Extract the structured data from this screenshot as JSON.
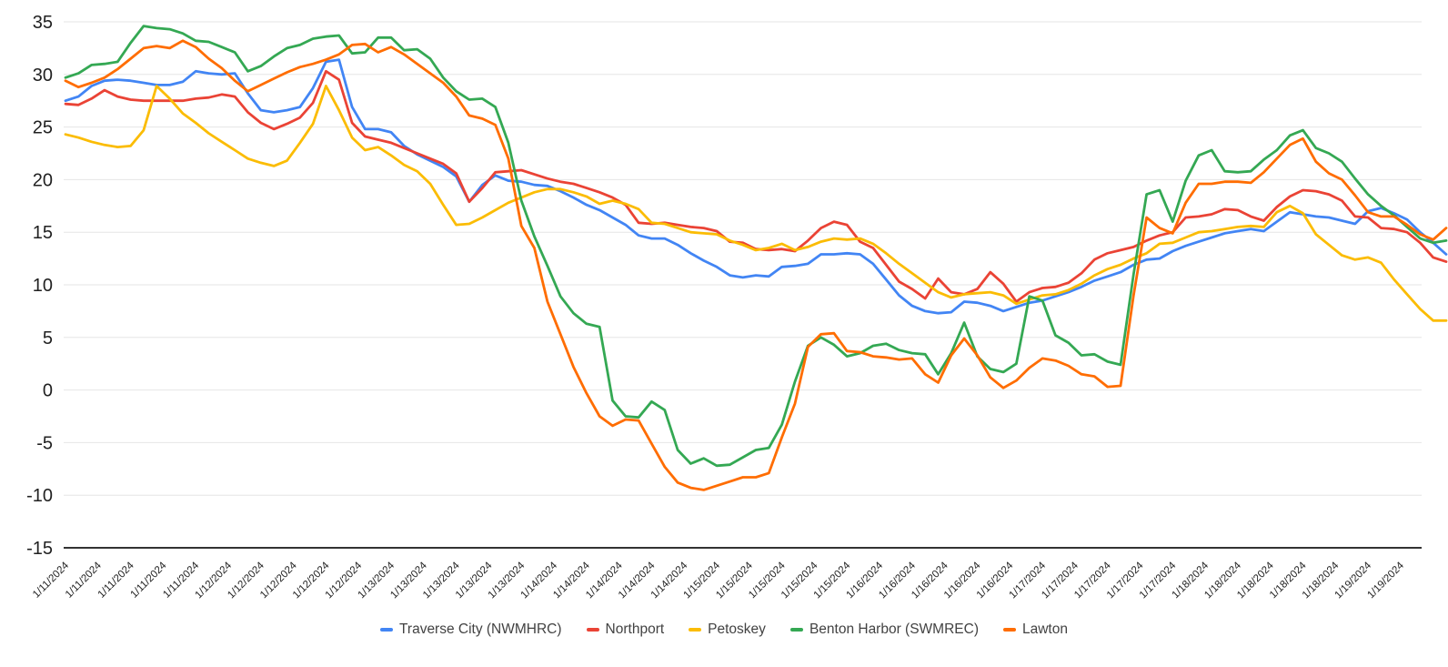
{
  "chart_data": {
    "type": "line",
    "title": "",
    "xlabel": "",
    "ylabel": "",
    "grid": true,
    "legend_position": "bottom",
    "y_axis": {
      "min": -15,
      "max": 35,
      "tick_step": 5,
      "tick_labels": [
        "35",
        "30",
        "25",
        "20",
        "15",
        "10",
        "5",
        "0",
        "-5",
        "-10",
        "-15"
      ]
    },
    "x_axis": {
      "tick_interval_hours": 5,
      "tick_labels": [
        "1/11/2024",
        "1/11/2024",
        "1/11/2024",
        "1/11/2024",
        "1/11/2024",
        "1/12/2024",
        "1/12/2024",
        "1/12/2024",
        "1/12/2024",
        "1/12/2024",
        "1/13/2024",
        "1/13/2024",
        "1/13/2024",
        "1/13/2024",
        "1/13/2024",
        "1/14/2024",
        "1/14/2024",
        "1/14/2024",
        "1/14/2024",
        "1/14/2024",
        "1/15/2024",
        "1/15/2024",
        "1/15/2024",
        "1/15/2024",
        "1/15/2024",
        "1/16/2024",
        "1/16/2024",
        "1/16/2024",
        "1/16/2024",
        "1/16/2024",
        "1/17/2024",
        "1/17/2024",
        "1/17/2024",
        "1/17/2024",
        "1/17/2024",
        "1/18/2024",
        "1/18/2024",
        "1/18/2024",
        "1/18/2024",
        "1/18/2024",
        "1/19/2024",
        "1/19/2024"
      ]
    },
    "x_step_hours": 2,
    "x_max_hours": 212,
    "series": [
      {
        "name": "Traverse City (NWMHRC)",
        "color": "#4285F4",
        "values": [
          27.5,
          27.9,
          28.9,
          29.4,
          29.5,
          29.4,
          29.2,
          29.0,
          29.0,
          29.3,
          30.3,
          30.1,
          30.0,
          30.1,
          28.2,
          26.6,
          26.4,
          26.6,
          26.9,
          28.7,
          31.2,
          31.4,
          26.9,
          24.8,
          24.8,
          24.5,
          23.2,
          22.4,
          21.8,
          21.2,
          20.3,
          17.9,
          19.5,
          20.4,
          19.9,
          19.8,
          19.5,
          19.4,
          18.9,
          18.3,
          17.6,
          17.1,
          16.4,
          15.7,
          14.7,
          14.4,
          14.4,
          13.8,
          13.0,
          12.3,
          11.7,
          10.9,
          10.7,
          10.9,
          10.8,
          11.7,
          11.8,
          12.0,
          12.9,
          12.9,
          13.0,
          12.9,
          12.0,
          10.5,
          9.0,
          8.0,
          7.5,
          7.3,
          7.4,
          8.4,
          8.3,
          8.0,
          7.5,
          7.9,
          8.3,
          8.5,
          8.9,
          9.3,
          9.8,
          10.4,
          10.8,
          11.2,
          11.9,
          12.4,
          12.5,
          13.2,
          13.7,
          14.1,
          14.5,
          14.9,
          15.1,
          15.3,
          15.1,
          16.0,
          16.9,
          16.7,
          16.5,
          16.4,
          16.1,
          15.8,
          17.0,
          17.3,
          16.8,
          16.2,
          15.0,
          14.0,
          12.9
        ]
      },
      {
        "name": "Northport",
        "color": "#EA4335",
        "values": [
          27.2,
          27.1,
          27.7,
          28.5,
          27.9,
          27.6,
          27.5,
          27.5,
          27.5,
          27.5,
          27.7,
          27.8,
          28.1,
          27.9,
          26.4,
          25.4,
          24.8,
          25.3,
          25.9,
          27.3,
          30.3,
          29.5,
          25.4,
          24.1,
          23.8,
          23.5,
          23.0,
          22.5,
          22.0,
          21.5,
          20.6,
          17.9,
          19.2,
          20.7,
          20.8,
          20.9,
          20.5,
          20.1,
          19.8,
          19.6,
          19.2,
          18.8,
          18.3,
          17.6,
          15.9,
          15.8,
          15.9,
          15.7,
          15.5,
          15.4,
          15.1,
          14.1,
          14.0,
          13.4,
          13.3,
          13.4,
          13.2,
          14.2,
          15.4,
          16.0,
          15.7,
          14.1,
          13.5,
          11.9,
          10.3,
          9.6,
          8.7,
          10.6,
          9.3,
          9.1,
          9.6,
          11.2,
          10.1,
          8.4,
          9.3,
          9.7,
          9.8,
          10.2,
          11.1,
          12.4,
          13.0,
          13.3,
          13.6,
          14.2,
          14.7,
          15.0,
          16.4,
          16.5,
          16.7,
          17.2,
          17.1,
          16.5,
          16.1,
          17.4,
          18.4,
          19.0,
          18.9,
          18.6,
          18.0,
          16.5,
          16.4,
          15.4,
          15.3,
          15.0,
          14.0,
          12.6,
          12.2
        ]
      },
      {
        "name": "Petoskey",
        "color": "#FBBC04",
        "values": [
          24.3,
          24.0,
          23.6,
          23.3,
          23.1,
          23.2,
          24.7,
          28.9,
          27.7,
          26.3,
          25.4,
          24.4,
          23.6,
          22.8,
          22.0,
          21.6,
          21.3,
          21.8,
          23.5,
          25.3,
          28.9,
          26.6,
          24.0,
          22.8,
          23.1,
          22.3,
          21.4,
          20.8,
          19.6,
          17.6,
          15.7,
          15.8,
          16.4,
          17.1,
          17.8,
          18.3,
          18.8,
          19.1,
          19.1,
          18.8,
          18.4,
          17.7,
          18.0,
          17.7,
          17.2,
          15.9,
          15.8,
          15.4,
          15.0,
          14.9,
          14.8,
          14.2,
          13.8,
          13.3,
          13.5,
          13.9,
          13.3,
          13.6,
          14.1,
          14.4,
          14.3,
          14.4,
          13.9,
          13.0,
          12.0,
          11.1,
          10.2,
          9.3,
          8.8,
          9.1,
          9.2,
          9.3,
          9.0,
          8.2,
          8.6,
          9.0,
          9.1,
          9.5,
          10.1,
          10.9,
          11.5,
          11.9,
          12.5,
          13.0,
          13.9,
          14.0,
          14.5,
          15.0,
          15.1,
          15.3,
          15.5,
          15.6,
          15.5,
          16.9,
          17.5,
          16.8,
          14.8,
          13.8,
          12.8,
          12.4,
          12.6,
          12.1,
          10.5,
          9.1,
          7.7,
          6.6,
          6.6
        ]
      },
      {
        "name": "Benton Harbor (SWMREC)",
        "color": "#34A853",
        "values": [
          29.7,
          30.1,
          30.9,
          31.0,
          31.2,
          33.0,
          34.6,
          34.4,
          34.3,
          33.9,
          33.2,
          33.1,
          32.6,
          32.1,
          30.3,
          30.8,
          31.7,
          32.5,
          32.8,
          33.4,
          33.6,
          33.7,
          32.0,
          32.1,
          33.5,
          33.5,
          32.3,
          32.4,
          31.5,
          29.7,
          28.4,
          27.6,
          27.7,
          26.9,
          23.5,
          18.0,
          14.6,
          11.8,
          8.9,
          7.3,
          6.3,
          6.0,
          -1.0,
          -2.5,
          -2.6,
          -1.1,
          -1.9,
          -5.7,
          -7.0,
          -6.5,
          -7.2,
          -7.1,
          -6.4,
          -5.7,
          -5.5,
          -3.3,
          0.8,
          4.2,
          5.0,
          4.3,
          3.2,
          3.5,
          4.2,
          4.4,
          3.8,
          3.5,
          3.4,
          1.5,
          3.5,
          6.4,
          3.2,
          2.0,
          1.7,
          2.5,
          8.9,
          8.5,
          5.2,
          4.5,
          3.3,
          3.4,
          2.7,
          2.4,
          11.0,
          18.6,
          19.0,
          16.0,
          19.9,
          22.3,
          22.8,
          20.8,
          20.7,
          20.8,
          21.9,
          22.8,
          24.2,
          24.7,
          23.0,
          22.5,
          21.7,
          20.1,
          18.6,
          17.5,
          16.6,
          15.5,
          14.4,
          14.0,
          14.2
        ]
      },
      {
        "name": "Lawton",
        "color": "#FF6D01",
        "values": [
          29.4,
          28.8,
          29.2,
          29.7,
          30.5,
          31.5,
          32.5,
          32.7,
          32.5,
          33.2,
          32.6,
          31.5,
          30.6,
          29.4,
          28.4,
          29.0,
          29.6,
          30.2,
          30.7,
          31.0,
          31.4,
          31.9,
          32.8,
          32.9,
          32.1,
          32.6,
          31.9,
          31.0,
          30.1,
          29.2,
          27.9,
          26.1,
          25.8,
          25.2,
          22.0,
          15.6,
          13.5,
          8.4,
          5.3,
          2.2,
          -0.3,
          -2.5,
          -3.4,
          -2.8,
          -2.9,
          -5.1,
          -7.3,
          -8.8,
          -9.3,
          -9.5,
          -9.1,
          -8.7,
          -8.3,
          -8.3,
          -7.9,
          -4.5,
          -1.3,
          4.1,
          5.3,
          5.4,
          3.7,
          3.6,
          3.2,
          3.1,
          2.9,
          3.0,
          1.5,
          0.7,
          3.3,
          4.9,
          3.3,
          1.2,
          0.2,
          0.9,
          2.1,
          3.0,
          2.8,
          2.3,
          1.5,
          1.3,
          0.3,
          0.4,
          9.0,
          16.4,
          15.4,
          14.9,
          17.8,
          19.6,
          19.6,
          19.8,
          19.8,
          19.7,
          20.7,
          22.0,
          23.3,
          23.9,
          21.7,
          20.6,
          20.0,
          18.5,
          16.9,
          16.5,
          16.5,
          15.7,
          14.8,
          14.3,
          15.4
        ]
      }
    ]
  },
  "layout_colors": {
    "background": "#ffffff",
    "gridline": "#e6e6e6",
    "axis_line": "#333333",
    "y_label_color": "#212121",
    "x_label_color": "#222222",
    "legend_text": "#424242"
  }
}
